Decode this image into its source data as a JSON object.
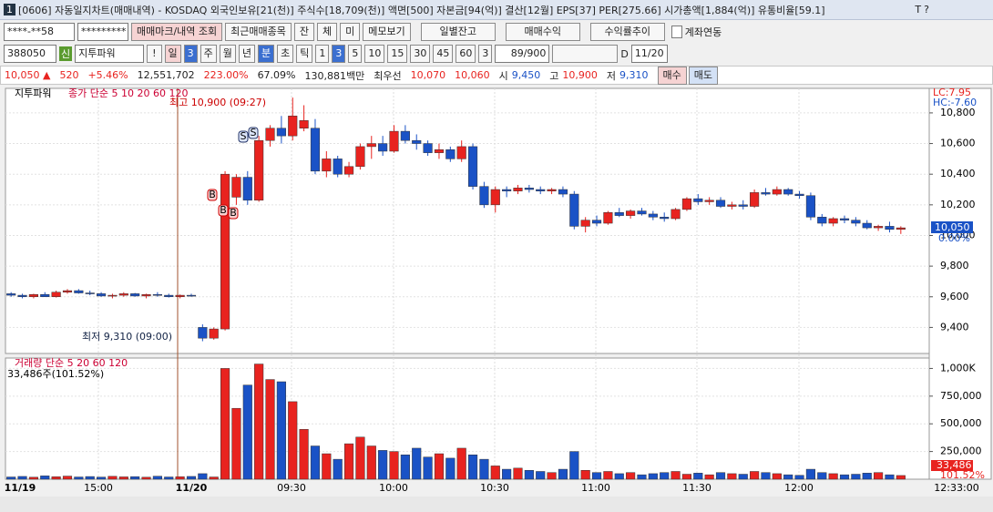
{
  "title_bar": {
    "text": "[0606] 자동일지차트(매매내역) - KOSDAQ 외국인보유[21(천)] 주식수[18,709(천)] 액면[500] 자본금[94(억)] 결산[12월] EPS[37] PER[275.66] 시가총액[1,884(억)] 유통비율[59.1]",
    "window_buttons": [
      "T",
      "?"
    ]
  },
  "toolbar": {
    "account": "****-**58",
    "password": "*********",
    "buttons": [
      "매매마크/내역 조회",
      "최근매매종목",
      "잔",
      "체",
      "미",
      "메모보기",
      "일별잔고",
      "매매수익",
      "수익률추이"
    ],
    "checkbox": "계좌연동"
  },
  "symbol_bar": {
    "code": "388050",
    "new_tag": "신",
    "name": "지투파워",
    "alert": "!",
    "period_buttons": [
      "일",
      "3",
      "주",
      "월",
      "년",
      "분",
      "초",
      "틱"
    ],
    "interval_buttons": [
      "1",
      "3",
      "5",
      "10",
      "15",
      "30",
      "45",
      "60",
      "3"
    ],
    "count": "89/900",
    "date_prefix": "D",
    "date": "11/20"
  },
  "quote_bar": {
    "items": [
      "10,050 ▲",
      "520",
      "+5.46%",
      "12,551,702",
      "223.00%",
      "67.09%",
      "130,881백만",
      "최우선",
      "10,070",
      "10,060",
      "시",
      "9,450",
      "고",
      "10,900",
      "저",
      "9,310"
    ],
    "buy": "매수",
    "sell": "매도"
  },
  "chart_data": {
    "type": "candlestick",
    "legend_name": "지투파워",
    "legend_ma": "종가 단순 5 10 20 60 120",
    "lc": "LC:7.95",
    "hc": "HC:-7.60",
    "high_note": "최고 10,900 (09:27)",
    "low_note": "최저 9,310 (09:00)",
    "last_price": "10,050",
    "last_change": "0.00%",
    "volume_legend": "거래량 단순 5 20 60 120",
    "volume_note": "33,486주(101.52%)",
    "last_volume": "33,486",
    "last_volume_pct": "101.52%",
    "trade_marks": [
      "B",
      "B",
      "B",
      "S",
      "S"
    ],
    "ylim": [
      9230,
      10960
    ],
    "yticks": [
      {
        "value": 9400,
        "label": "9,400"
      },
      {
        "value": 9600,
        "label": "9,600"
      },
      {
        "value": 9800,
        "label": "9,800"
      },
      {
        "value": 10000,
        "label": "10,000"
      },
      {
        "value": 10200,
        "label": "10,200"
      },
      {
        "value": 10400,
        "label": "10,400"
      },
      {
        "value": 10600,
        "label": "10,600"
      },
      {
        "value": 10800,
        "label": "10,800"
      }
    ],
    "vlim": [
      0,
      1094000
    ],
    "vticks": [
      {
        "value": 250000,
        "label": "250,000"
      },
      {
        "value": 500000,
        "label": "500,000"
      },
      {
        "value": 750000,
        "label": "750,000"
      },
      {
        "value": 1000000,
        "label": "1,000K"
      }
    ],
    "time_labels": [
      "11/19",
      "15:00",
      "11/20",
      "09:30",
      "10:00",
      "10:30",
      "11:00",
      "11:30",
      "12:00",
      "12:33:00"
    ],
    "up_color": "#e8231f",
    "down_color": "#1a52c6",
    "candles": [
      [
        9620,
        9630,
        9600,
        9610
      ],
      [
        9610,
        9620,
        9590,
        9600
      ],
      [
        9600,
        9620,
        9590,
        9615
      ],
      [
        9615,
        9630,
        9600,
        9600
      ],
      [
        9600,
        9640,
        9595,
        9630
      ],
      [
        9630,
        9650,
        9620,
        9640
      ],
      [
        9640,
        9650,
        9620,
        9625
      ],
      [
        9625,
        9640,
        9610,
        9620
      ],
      [
        9620,
        9630,
        9600,
        9605
      ],
      [
        9605,
        9620,
        9590,
        9610
      ],
      [
        9610,
        9630,
        9600,
        9620
      ],
      [
        9620,
        9625,
        9600,
        9605
      ],
      [
        9605,
        9620,
        9590,
        9615
      ],
      [
        9615,
        9630,
        9600,
        9610
      ],
      [
        9610,
        9620,
        9595,
        9600
      ],
      [
        9600,
        9615,
        9590,
        9610
      ],
      [
        9610,
        9620,
        9600,
        9605
      ],
      [
        9400,
        9420,
        9310,
        9330
      ],
      [
        9330,
        9400,
        9320,
        9390
      ],
      [
        9390,
        10420,
        9380,
        10400
      ],
      [
        10250,
        10400,
        10200,
        10380
      ],
      [
        10380,
        10420,
        10200,
        10230
      ],
      [
        10230,
        10650,
        10220,
        10620
      ],
      [
        10620,
        10720,
        10580,
        10700
      ],
      [
        10700,
        10780,
        10600,
        10650
      ],
      [
        10650,
        10900,
        10620,
        10780
      ],
      [
        10700,
        10850,
        10680,
        10750
      ],
      [
        10700,
        10760,
        10400,
        10420
      ],
      [
        10420,
        10550,
        10380,
        10500
      ],
      [
        10500,
        10520,
        10380,
        10400
      ],
      [
        10400,
        10480,
        10380,
        10450
      ],
      [
        10450,
        10600,
        10430,
        10580
      ],
      [
        10580,
        10650,
        10500,
        10600
      ],
      [
        10600,
        10650,
        10520,
        10550
      ],
      [
        10550,
        10720,
        10540,
        10680
      ],
      [
        10680,
        10720,
        10600,
        10620
      ],
      [
        10620,
        10660,
        10560,
        10600
      ],
      [
        10600,
        10620,
        10520,
        10540
      ],
      [
        10540,
        10600,
        10500,
        10560
      ],
      [
        10560,
        10580,
        10480,
        10500
      ],
      [
        10500,
        10620,
        10480,
        10580
      ],
      [
        10580,
        10600,
        10300,
        10320
      ],
      [
        10320,
        10350,
        10180,
        10200
      ],
      [
        10200,
        10320,
        10150,
        10300
      ],
      [
        10300,
        10320,
        10250,
        10290
      ],
      [
        10290,
        10330,
        10270,
        10310
      ],
      [
        10310,
        10330,
        10280,
        10300
      ],
      [
        10300,
        10320,
        10270,
        10290
      ],
      [
        10290,
        10310,
        10270,
        10300
      ],
      [
        10300,
        10320,
        10250,
        10270
      ],
      [
        10270,
        10290,
        10040,
        10060
      ],
      [
        10060,
        10120,
        10020,
        10100
      ],
      [
        10100,
        10130,
        10060,
        10080
      ],
      [
        10080,
        10160,
        10070,
        10150
      ],
      [
        10150,
        10180,
        10120,
        10130
      ],
      [
        10130,
        10170,
        10110,
        10160
      ],
      [
        10160,
        10180,
        10130,
        10140
      ],
      [
        10140,
        10160,
        10100,
        10120
      ],
      [
        10120,
        10150,
        10090,
        10110
      ],
      [
        10110,
        10180,
        10100,
        10170
      ],
      [
        10170,
        10250,
        10160,
        10240
      ],
      [
        10240,
        10270,
        10200,
        10220
      ],
      [
        10220,
        10250,
        10200,
        10230
      ],
      [
        10230,
        10250,
        10180,
        10190
      ],
      [
        10190,
        10220,
        10170,
        10200
      ],
      [
        10200,
        10230,
        10170,
        10190
      ],
      [
        10190,
        10300,
        10180,
        10280
      ],
      [
        10280,
        10310,
        10260,
        10270
      ],
      [
        10270,
        10320,
        10260,
        10300
      ],
      [
        10300,
        10310,
        10260,
        10270
      ],
      [
        10270,
        10290,
        10240,
        10260
      ],
      [
        10260,
        10280,
        10100,
        10120
      ],
      [
        10120,
        10140,
        10060,
        10080
      ],
      [
        10080,
        10120,
        10060,
        10110
      ],
      [
        10110,
        10130,
        10080,
        10100
      ],
      [
        10100,
        10120,
        10060,
        10080
      ],
      [
        10080,
        10100,
        10040,
        10050
      ],
      [
        10050,
        10070,
        10030,
        10060
      ],
      [
        10060,
        10090,
        10020,
        10040
      ],
      [
        10040,
        10060,
        10010,
        10050
      ]
    ],
    "volumes": [
      20000,
      25000,
      18000,
      30000,
      22000,
      28000,
      20000,
      24000,
      19000,
      26000,
      21000,
      23000,
      18000,
      27000,
      20000,
      22000,
      25000,
      50000,
      20000,
      1000000,
      640000,
      850000,
      1040000,
      900000,
      880000,
      700000,
      450000,
      300000,
      230000,
      180000,
      320000,
      380000,
      300000,
      260000,
      250000,
      220000,
      280000,
      200000,
      230000,
      190000,
      280000,
      220000,
      180000,
      120000,
      90000,
      100000,
      80000,
      70000,
      60000,
      90000,
      250000,
      80000,
      60000,
      70000,
      50000,
      60000,
      40000,
      50000,
      60000,
      70000,
      45000,
      55000,
      40000,
      60000,
      50000,
      45000,
      70000,
      60000,
      50000,
      40000,
      35000,
      90000,
      60000,
      50000,
      40000,
      45000,
      55000,
      60000,
      40000,
      33486
    ]
  }
}
